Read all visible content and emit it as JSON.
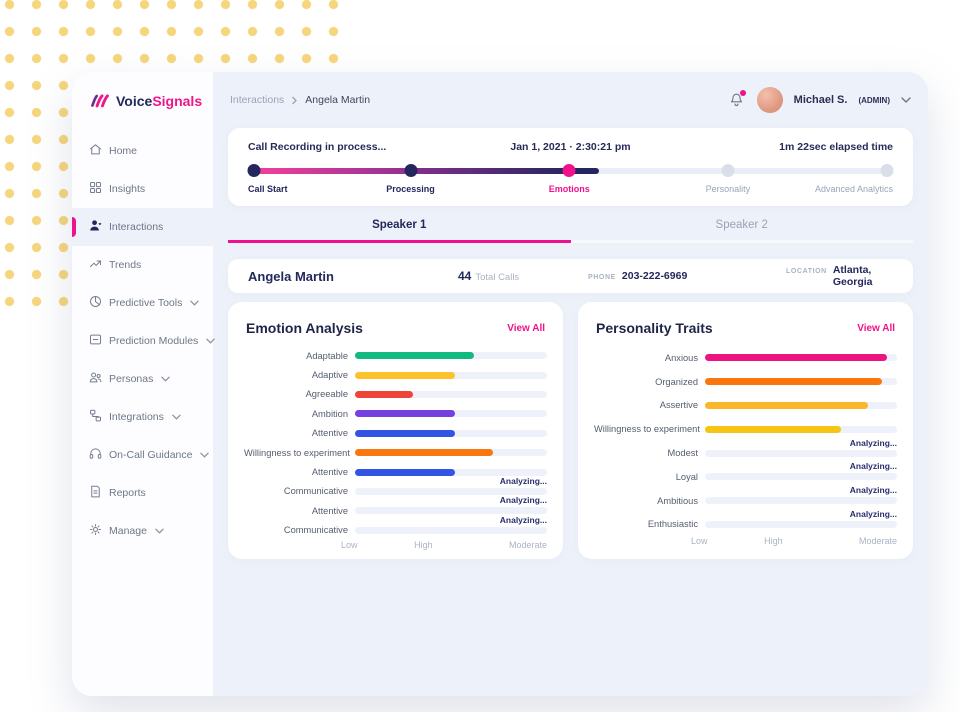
{
  "app": {
    "brand_part1": "Voice",
    "brand_part2": "Signals",
    "accent_pink": "#f0128c",
    "navy": "#23285a",
    "content_bg": "#edf1f9"
  },
  "sidebar": {
    "items": [
      {
        "label": "Home",
        "icon": "home-icon",
        "active": false,
        "chevron": false
      },
      {
        "label": "Insights",
        "icon": "insights-grid-icon",
        "active": false,
        "chevron": false
      },
      {
        "label": "Interactions",
        "icon": "person-icon",
        "active": true,
        "chevron": false
      },
      {
        "label": "Trends",
        "icon": "trend-arrow-icon",
        "active": false,
        "chevron": false
      },
      {
        "label": "Predictive Tools",
        "icon": "pie-chart-icon",
        "active": false,
        "chevron": true
      },
      {
        "label": "Prediction Modules",
        "icon": "module-icon",
        "active": false,
        "chevron": true
      },
      {
        "label": "Personas",
        "icon": "people-icon",
        "active": false,
        "chevron": true
      },
      {
        "label": "Integrations",
        "icon": "integration-icon",
        "active": false,
        "chevron": true
      },
      {
        "label": "On-Call Guidance",
        "icon": "headset-icon",
        "active": false,
        "chevron": true
      },
      {
        "label": "Reports",
        "icon": "document-icon",
        "active": false,
        "chevron": false
      },
      {
        "label": "Manage",
        "icon": "gear-icon",
        "active": false,
        "chevron": true
      }
    ]
  },
  "header": {
    "breadcrumb_parent": "Interactions",
    "breadcrumb_current": "Angela Martin",
    "user_name": "Michael S.",
    "user_role": "(ADMIN)"
  },
  "recording": {
    "status": "Call Recording in process...",
    "datetime": "Jan 1, 2021 · 2:30:21 pm",
    "elapsed": "1m 22sec elapsed time",
    "stages": [
      {
        "label": "Call Start",
        "state": "done"
      },
      {
        "label": "Processing",
        "state": "done"
      },
      {
        "label": "Emotions",
        "state": "active"
      },
      {
        "label": "Personality",
        "state": "pending"
      },
      {
        "label": "Advanced Analytics",
        "state": "pending"
      }
    ]
  },
  "tabs": [
    {
      "label": "Speaker 1",
      "active": true
    },
    {
      "label": "Speaker 2",
      "active": false
    }
  ],
  "contact": {
    "name": "Angela Martin",
    "total_calls": "44",
    "total_calls_label": "Total Calls",
    "phone_label": "PHONE",
    "phone": "203-222-6969",
    "location_label": "LOCATION",
    "location": "Atlanta, Georgia"
  },
  "chart_data": [
    {
      "type": "bar",
      "orientation": "horizontal",
      "title": "Emotion Analysis",
      "view_all_label": "View All",
      "analyzing_label": "Analyzing...",
      "xlim": [
        0,
        100
      ],
      "axis_labels": [
        "Low",
        "High",
        "Moderate"
      ],
      "categories": [
        "Adaptable",
        "Adaptive",
        "Agreeable",
        "Ambition",
        "Attentive",
        "Willingness to experiment",
        "Attentive",
        "Communicative",
        "Attentive",
        "Communicative"
      ],
      "values": [
        62,
        52,
        30,
        52,
        52,
        72,
        52,
        null,
        null,
        null
      ],
      "colors": [
        "#12b981",
        "#fcc12c",
        "#f04438",
        "#7440e0",
        "#3254e4",
        "#f9770e",
        "#3254e4",
        null,
        null,
        null
      ]
    },
    {
      "type": "bar",
      "orientation": "horizontal",
      "title": "Personality Traits",
      "view_all_label": "View All",
      "analyzing_label": "Analyzing...",
      "xlim": [
        0,
        100
      ],
      "axis_labels": [
        "Low",
        "High",
        "Moderate"
      ],
      "categories": [
        "Anxious",
        "Organized",
        "Assertive",
        "Willingness to experiment",
        "Modest",
        "Loyal",
        "Ambitious",
        "Enthusiastic"
      ],
      "values": [
        95,
        92,
        85,
        71,
        null,
        null,
        null,
        null
      ],
      "colors": [
        "#ee1480",
        "#f9770e",
        "#fbb72a",
        "#f6c513",
        null,
        null,
        null,
        null
      ]
    }
  ]
}
